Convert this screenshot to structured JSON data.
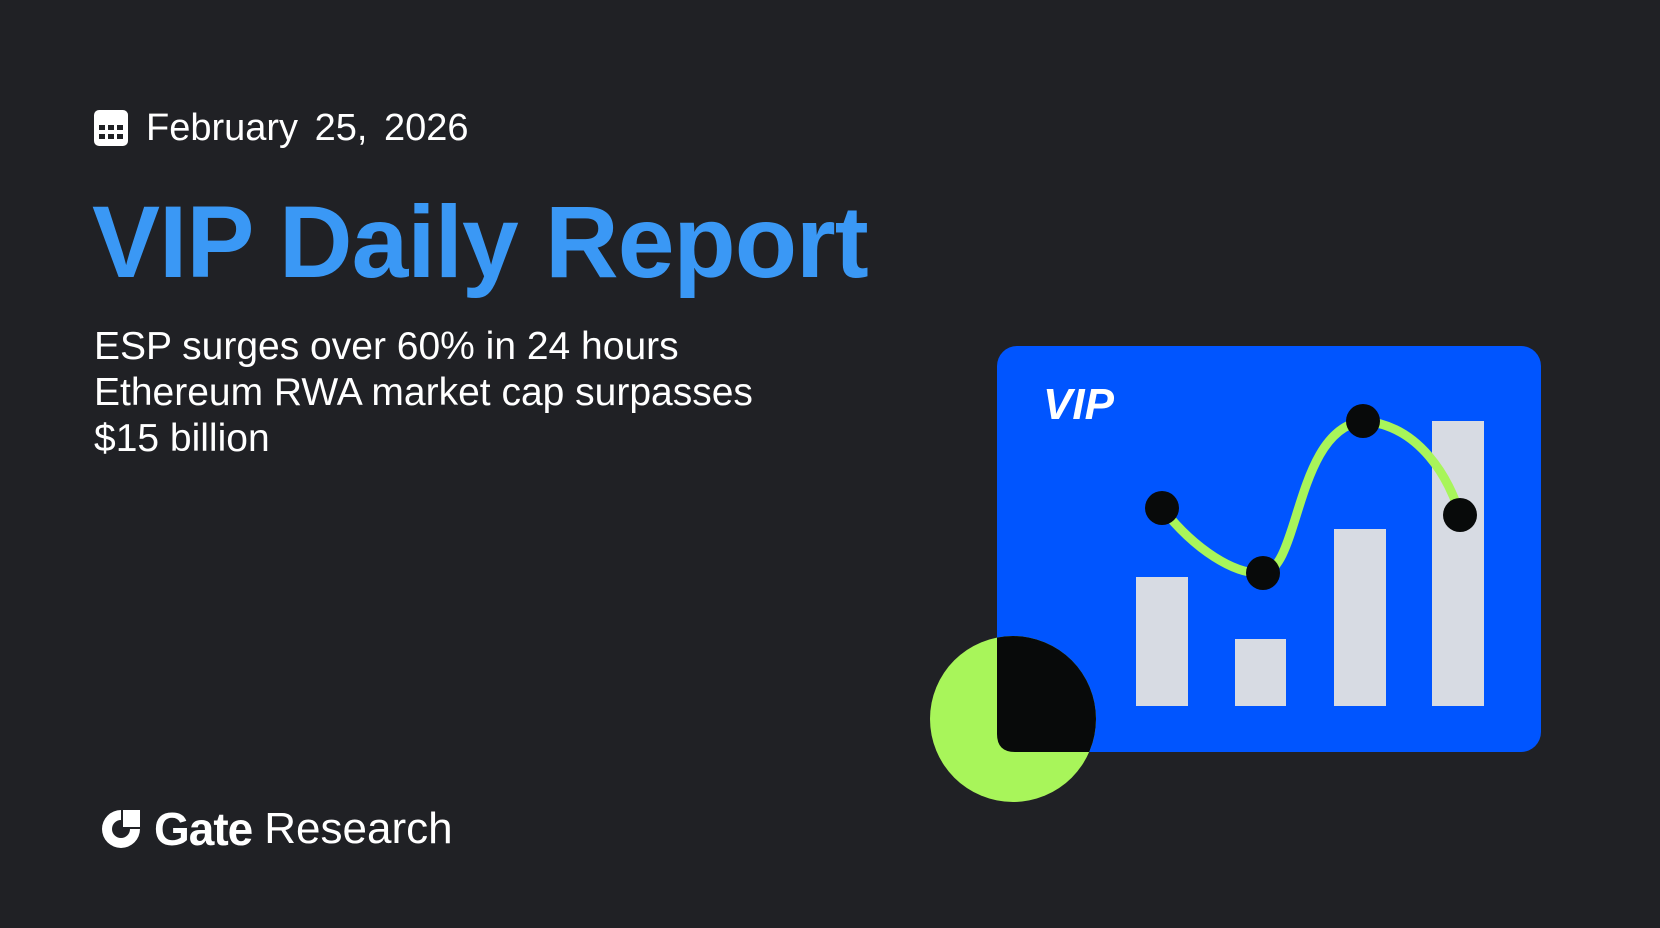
{
  "date": "February 25, 2026",
  "title": "VIP Daily Report",
  "headlines": [
    "ESP surges over 60% in 24 hours",
    "Ethereum RWA market cap surpasses",
    "$15 billion"
  ],
  "illustration": {
    "badge": "VIP"
  },
  "brand": {
    "name": "Gate",
    "suffix": "Research"
  },
  "colors": {
    "background": "#202125",
    "accent": "#3a98f5",
    "card": "#0055ff",
    "lime": "#a8f55a",
    "bar": "#d7dbe3"
  }
}
